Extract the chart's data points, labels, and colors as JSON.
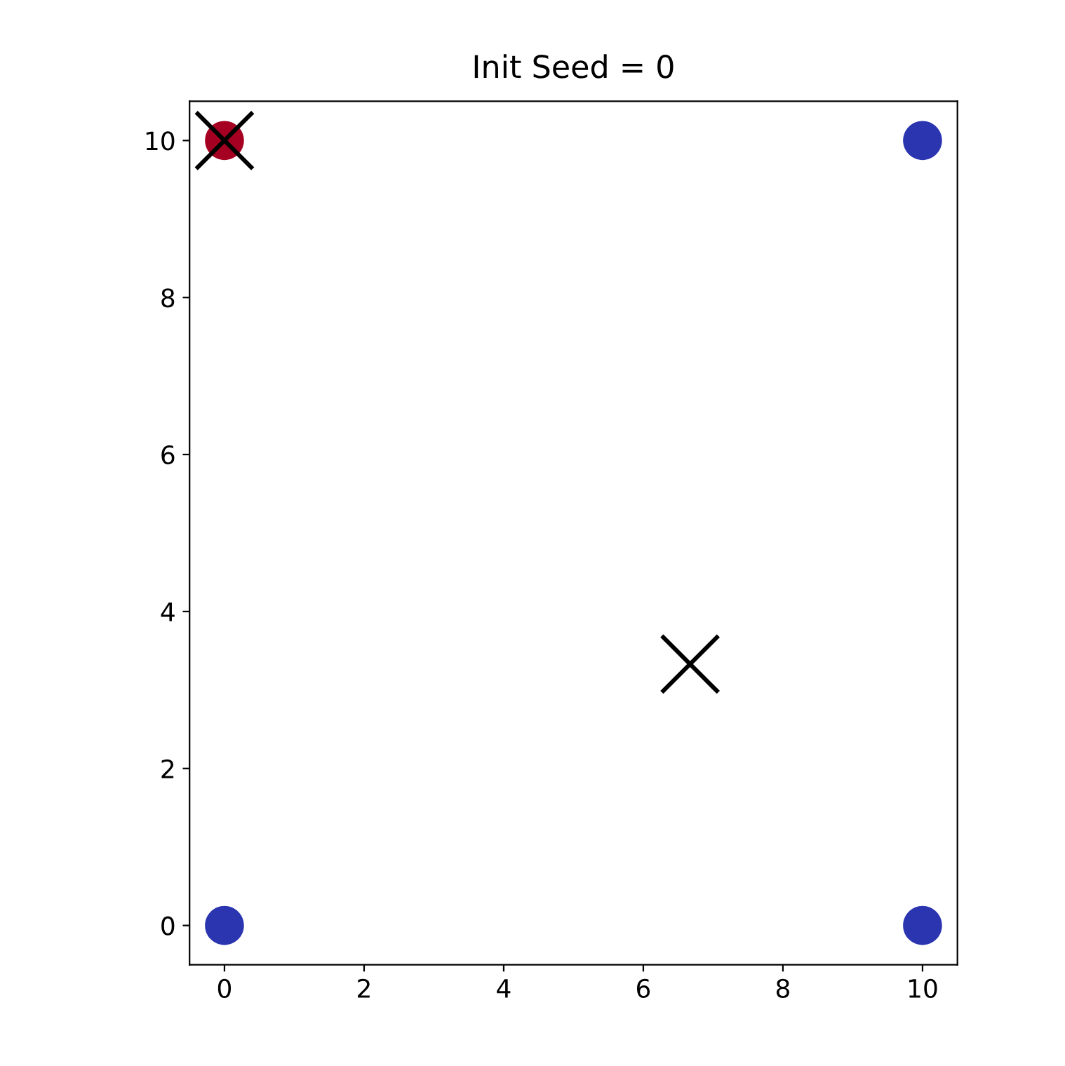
{
  "chart_data": {
    "type": "scatter",
    "title": "Init Seed = 0",
    "xlim": [
      -0.5,
      10.5
    ],
    "ylim": [
      -0.5,
      10.5
    ],
    "xticks": [
      0,
      2,
      4,
      6,
      8,
      10
    ],
    "yticks": [
      0,
      2,
      4,
      6,
      8,
      10
    ],
    "grid": false,
    "legend": false,
    "series": [
      {
        "color": "#2b35b0",
        "marker": "circle",
        "x": [
          0,
          10,
          10
        ],
        "values": [
          0,
          0,
          10
        ]
      },
      {
        "color": "#a50021",
        "marker": "circle",
        "x": [
          0
        ],
        "values": [
          10
        ]
      },
      {
        "color": "#000000",
        "marker": "cross",
        "x": [
          0,
          6.67
        ],
        "values": [
          10,
          3.33
        ]
      }
    ]
  }
}
